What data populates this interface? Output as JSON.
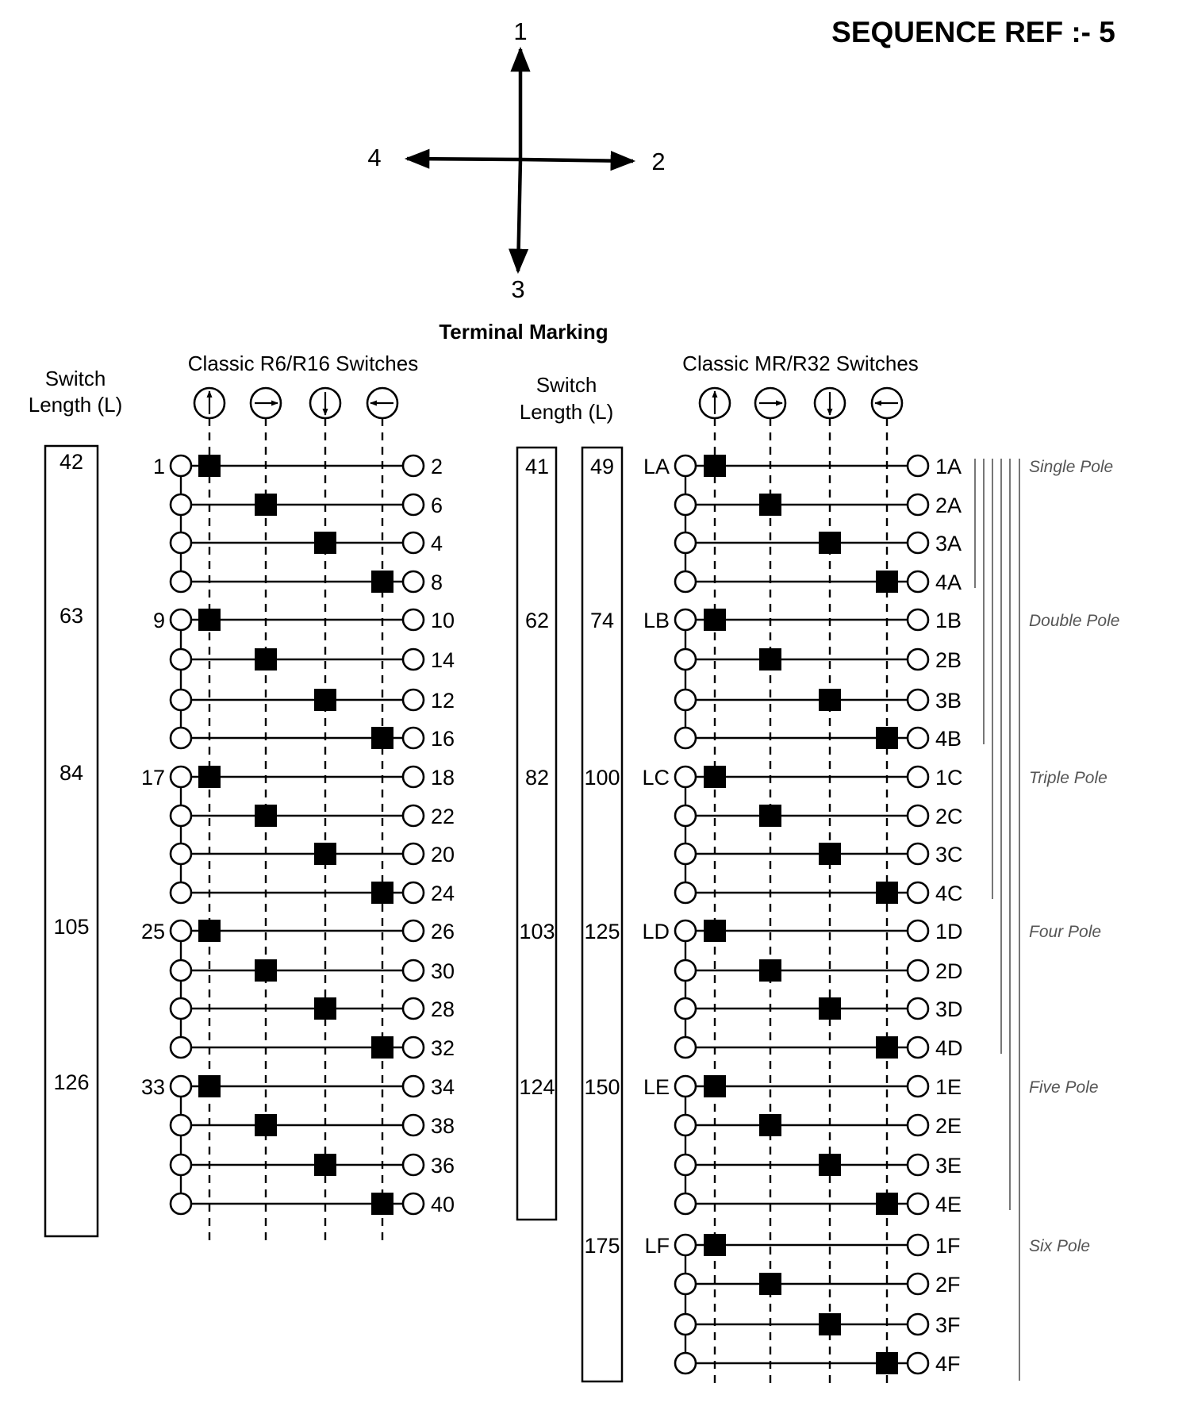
{
  "sequence_ref": "SEQUENCE  REF :- 5",
  "directions": {
    "up": "1",
    "right": "2",
    "down": "3",
    "left": "4"
  },
  "terminal_marking": "Terminal Marking",
  "left": {
    "title": "Classic R6/R16 Switches",
    "switch_length_label": [
      "Switch",
      "Length (L)"
    ],
    "lengths": [
      "42",
      "63",
      "84",
      "105",
      "126"
    ],
    "rows": [
      {
        "left": "1",
        "right": "2",
        "pos": 1
      },
      {
        "left": "",
        "right": "6",
        "pos": 2
      },
      {
        "left": "",
        "right": "4",
        "pos": 3
      },
      {
        "left": "",
        "right": "8",
        "pos": 4
      },
      {
        "left": "9",
        "right": "10",
        "pos": 1
      },
      {
        "left": "",
        "right": "14",
        "pos": 2
      },
      {
        "left": "",
        "right": "12",
        "pos": 3
      },
      {
        "left": "",
        "right": "16",
        "pos": 4
      },
      {
        "left": "17",
        "right": "18",
        "pos": 1
      },
      {
        "left": "",
        "right": "22",
        "pos": 2
      },
      {
        "left": "",
        "right": "20",
        "pos": 3
      },
      {
        "left": "",
        "right": "24",
        "pos": 4
      },
      {
        "left": "25",
        "right": "26",
        "pos": 1
      },
      {
        "left": "",
        "right": "30",
        "pos": 2
      },
      {
        "left": "",
        "right": "28",
        "pos": 3
      },
      {
        "left": "",
        "right": "32",
        "pos": 4
      },
      {
        "left": "33",
        "right": "34",
        "pos": 1
      },
      {
        "left": "",
        "right": "38",
        "pos": 2
      },
      {
        "left": "",
        "right": "36",
        "pos": 3
      },
      {
        "left": "",
        "right": "40",
        "pos": 4
      }
    ]
  },
  "right": {
    "title": "Classic MR/R32 Switches",
    "switch_length_label": [
      "Switch",
      "Length (L)"
    ],
    "lengths_a": [
      "41",
      "62",
      "82",
      "103",
      "124"
    ],
    "lengths_b": [
      "49",
      "74",
      "100",
      "125",
      "150",
      "175"
    ],
    "rows": [
      {
        "left": "LA",
        "right": "1A",
        "pos": 1
      },
      {
        "left": "",
        "right": "2A",
        "pos": 2
      },
      {
        "left": "",
        "right": "3A",
        "pos": 3
      },
      {
        "left": "",
        "right": "4A",
        "pos": 4
      },
      {
        "left": "LB",
        "right": "1B",
        "pos": 1
      },
      {
        "left": "",
        "right": "2B",
        "pos": 2
      },
      {
        "left": "",
        "right": "3B",
        "pos": 3
      },
      {
        "left": "",
        "right": "4B",
        "pos": 4
      },
      {
        "left": "LC",
        "right": "1C",
        "pos": 1
      },
      {
        "left": "",
        "right": "2C",
        "pos": 2
      },
      {
        "left": "",
        "right": "3C",
        "pos": 3
      },
      {
        "left": "",
        "right": "4C",
        "pos": 4
      },
      {
        "left": "LD",
        "right": "1D",
        "pos": 1
      },
      {
        "left": "",
        "right": "2D",
        "pos": 2
      },
      {
        "left": "",
        "right": "3D",
        "pos": 3
      },
      {
        "left": "",
        "right": "4D",
        "pos": 4
      },
      {
        "left": "LE",
        "right": "1E",
        "pos": 1
      },
      {
        "left": "",
        "right": "2E",
        "pos": 2
      },
      {
        "left": "",
        "right": "3E",
        "pos": 3
      },
      {
        "left": "",
        "right": "4E",
        "pos": 4
      },
      {
        "left": "LF",
        "right": "1F",
        "pos": 1
      },
      {
        "left": "",
        "right": "2F",
        "pos": 2
      },
      {
        "left": "",
        "right": "3F",
        "pos": 3
      },
      {
        "left": "",
        "right": "4F",
        "pos": 4
      }
    ]
  },
  "poles": [
    "Single Pole",
    "Double Pole",
    "Triple Pole",
    "Four Pole",
    "Five Pole",
    "Six Pole"
  ],
  "position_icons": [
    "arrow-up-icon",
    "arrow-right-icon",
    "arrow-down-icon",
    "arrow-left-icon"
  ]
}
